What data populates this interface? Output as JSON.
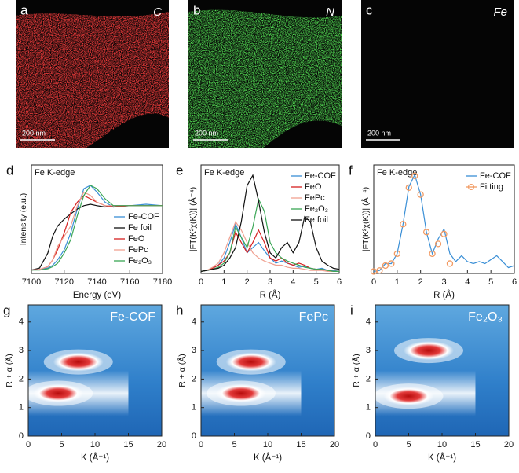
{
  "maps": [
    {
      "panel": "a",
      "element": "C",
      "scale": "200 nm"
    },
    {
      "panel": "b",
      "element": "N",
      "scale": "200 nm"
    },
    {
      "panel": "c",
      "element": "Fe",
      "scale": "200 nm"
    }
  ],
  "chart_data": [
    {
      "type": "line",
      "panel": "d",
      "title": "Fe K-edge",
      "xlabel": "Energy (eV)",
      "ylabel": "Intensity (e.u.)",
      "x": [
        7100,
        7105,
        7110,
        7113,
        7116,
        7120,
        7124,
        7128,
        7132,
        7136,
        7140,
        7145,
        7150,
        7160,
        7170,
        7180
      ],
      "xlim": [
        7100,
        7180
      ],
      "xticks": [
        7100,
        7120,
        7140,
        7160,
        7180
      ],
      "ylim": [
        0,
        1.6
      ],
      "legend": "lower right",
      "series": [
        {
          "name": "Fe-COF",
          "color": "#3a8fd6",
          "values": [
            0.05,
            0.06,
            0.08,
            0.12,
            0.2,
            0.35,
            0.6,
            0.95,
            1.25,
            1.3,
            1.2,
            1.05,
            0.98,
            1.0,
            1.02,
            1.0
          ]
        },
        {
          "name": "Fe foil",
          "color": "#111111",
          "values": [
            0.05,
            0.08,
            0.3,
            0.55,
            0.7,
            0.8,
            0.88,
            0.95,
            1.0,
            1.02,
            1.0,
            0.98,
            1.0,
            1.0,
            1.0,
            1.0
          ]
        },
        {
          "name": "FeO",
          "color": "#d62020",
          "values": [
            0.05,
            0.06,
            0.1,
            0.2,
            0.35,
            0.6,
            0.9,
            1.05,
            1.15,
            1.1,
            1.05,
            1.0,
            0.98,
            1.0,
            1.0,
            1.0
          ]
        },
        {
          "name": "FePc",
          "color": "#f0a090",
          "values": [
            0.05,
            0.06,
            0.1,
            0.2,
            0.4,
            0.55,
            0.7,
            1.0,
            1.2,
            1.15,
            1.05,
            1.0,
            1.0,
            1.0,
            1.0,
            1.0
          ]
        },
        {
          "name": "Fe₂O₃",
          "color": "#3aa655",
          "values": [
            0.05,
            0.05,
            0.07,
            0.1,
            0.15,
            0.3,
            0.5,
            0.85,
            1.15,
            1.3,
            1.25,
            1.1,
            1.0,
            1.0,
            1.0,
            1.0
          ]
        }
      ]
    },
    {
      "type": "line",
      "panel": "e",
      "title": "Fe K-edge",
      "xlabel": "R (Å)",
      "ylabel": "|FT(K²χ(K))| (Å⁻⁴)",
      "x": [
        0,
        0.25,
        0.5,
        0.75,
        1,
        1.25,
        1.5,
        1.75,
        2,
        2.25,
        2.5,
        2.75,
        3,
        3.25,
        3.5,
        3.75,
        4,
        4.25,
        4.5,
        4.75,
        5,
        5.25,
        5.5,
        5.75,
        6
      ],
      "xlim": [
        0,
        6
      ],
      "xticks": [
        0,
        1,
        2,
        3,
        4,
        5,
        6
      ],
      "ylim": [
        0,
        1.05
      ],
      "legend": "upper right",
      "series": [
        {
          "name": "Fe-COF",
          "color": "#3a8fd6",
          "values": [
            0.02,
            0.03,
            0.05,
            0.08,
            0.15,
            0.3,
            0.48,
            0.35,
            0.2,
            0.25,
            0.3,
            0.22,
            0.15,
            0.1,
            0.12,
            0.1,
            0.08,
            0.06,
            0.07,
            0.05,
            0.04,
            0.05,
            0.03,
            0.03,
            0.02
          ]
        },
        {
          "name": "FeO",
          "color": "#d62020",
          "values": [
            0.02,
            0.03,
            0.05,
            0.08,
            0.12,
            0.2,
            0.4,
            0.3,
            0.2,
            0.3,
            0.42,
            0.3,
            0.15,
            0.12,
            0.15,
            0.1,
            0.08,
            0.1,
            0.08,
            0.05,
            0.04,
            0.04,
            0.03,
            0.02,
            0.02
          ]
        },
        {
          "name": "FePc",
          "color": "#f0a090",
          "values": [
            0.02,
            0.03,
            0.06,
            0.1,
            0.2,
            0.35,
            0.5,
            0.42,
            0.3,
            0.2,
            0.15,
            0.12,
            0.1,
            0.08,
            0.08,
            0.06,
            0.05,
            0.05,
            0.04,
            0.03,
            0.03,
            0.03,
            0.02,
            0.02,
            0.02
          ]
        },
        {
          "name": "Fe₂O₃",
          "color": "#3aa655",
          "values": [
            0.02,
            0.03,
            0.04,
            0.06,
            0.1,
            0.2,
            0.45,
            0.35,
            0.25,
            0.45,
            0.72,
            0.6,
            0.3,
            0.2,
            0.15,
            0.12,
            0.1,
            0.08,
            0.06,
            0.05,
            0.04,
            0.04,
            0.03,
            0.02,
            0.02
          ]
        },
        {
          "name": "Fe foil",
          "color": "#111111",
          "values": [
            0.02,
            0.03,
            0.04,
            0.05,
            0.08,
            0.15,
            0.25,
            0.5,
            0.85,
            0.95,
            0.7,
            0.4,
            0.2,
            0.15,
            0.25,
            0.3,
            0.2,
            0.3,
            0.55,
            0.5,
            0.25,
            0.12,
            0.08,
            0.05,
            0.04
          ]
        }
      ]
    },
    {
      "type": "line",
      "panel": "f",
      "title": "Fe K-edge",
      "xlabel": "R (Å)",
      "ylabel": "|FT(K²χ(K))| (Å⁻⁴)",
      "x": [
        0,
        0.25,
        0.5,
        0.75,
        1,
        1.25,
        1.5,
        1.75,
        2,
        2.25,
        2.5,
        2.75,
        3,
        3.25,
        3.5,
        3.75,
        4,
        4.25,
        4.5,
        4.75,
        5,
        5.25,
        5.5,
        5.75,
        6
      ],
      "xlim": [
        0,
        6
      ],
      "xticks": [
        0,
        1,
        2,
        3,
        4,
        5,
        6
      ],
      "ylim": [
        0,
        1.1
      ],
      "legend": "upper right",
      "series": [
        {
          "name": "Fe-COF",
          "color": "#3a8fd6",
          "values": [
            0.02,
            0.03,
            0.1,
            0.1,
            0.2,
            0.5,
            0.88,
            1.0,
            0.8,
            0.42,
            0.2,
            0.35,
            0.45,
            0.2,
            0.12,
            0.18,
            0.12,
            0.1,
            0.12,
            0.1,
            0.14,
            0.18,
            0.12,
            0.06,
            0.08
          ]
        },
        {
          "name": "Fitting",
          "color": "#f29a62",
          "marker": "circle",
          "values": [
            0.02,
            0.03,
            0.08,
            0.1,
            0.2,
            0.5,
            0.87,
            0.99,
            0.8,
            0.42,
            0.2,
            0.3,
            0.4,
            0.1,
            null,
            null,
            null,
            null,
            null,
            null,
            null,
            null,
            null,
            null,
            null
          ]
        }
      ]
    },
    {
      "type": "wavelet",
      "panel": "g",
      "title": "Fe-COF",
      "xlabel": "K (Å⁻¹)",
      "ylabel": "R + α (Å)",
      "xlim": [
        0,
        20
      ],
      "xticks": [
        0,
        5,
        10,
        15,
        20
      ],
      "ylim": [
        0,
        4.6
      ],
      "yticks": [
        0,
        1,
        2,
        3,
        4
      ],
      "peaks": {
        "x": [
          4.5,
          7.5
        ],
        "y": [
          1.5,
          2.6
        ]
      }
    },
    {
      "type": "wavelet",
      "panel": "h",
      "title": "FePc",
      "xlabel": "K (Å⁻¹)",
      "ylabel": "R + α (Å)",
      "xlim": [
        0,
        20
      ],
      "xticks": [
        0,
        5,
        10,
        15,
        20
      ],
      "ylim": [
        0,
        4.6
      ],
      "yticks": [
        0,
        1,
        2,
        3,
        4
      ],
      "peaks": {
        "x": [
          6,
          7.5
        ],
        "y": [
          1.5,
          2.6
        ]
      }
    },
    {
      "type": "wavelet",
      "panel": "i",
      "title": "Fe₂O₃",
      "xlabel": "K (Å⁻¹)",
      "ylabel": "R + α (Å)",
      "xlim": [
        0,
        20
      ],
      "xticks": [
        0,
        5,
        10,
        15,
        20
      ],
      "ylim": [
        0,
        4.6
      ],
      "yticks": [
        0,
        1,
        2,
        3,
        4
      ],
      "peaks": {
        "x": [
          8,
          5
        ],
        "y": [
          3.0,
          1.4
        ]
      }
    }
  ]
}
